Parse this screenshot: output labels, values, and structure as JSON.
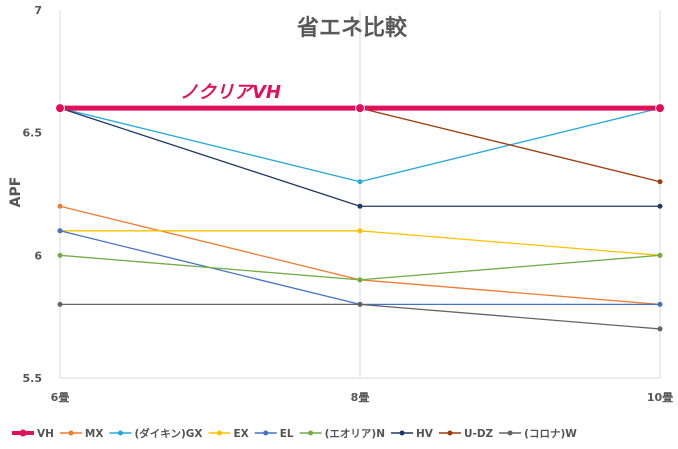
{
  "chart_data": {
    "type": "line",
    "title": "省エネ比較",
    "ylabel": "APF",
    "xlabel": "",
    "categories": [
      "6畳",
      "8畳",
      "10畳"
    ],
    "ylim": [
      5.5,
      7
    ],
    "yticks": [
      "5.5",
      "6",
      "6.5",
      "7"
    ],
    "grid": "vertical",
    "legend_position": "bottom",
    "annotation": "ノクリアVH",
    "series": [
      {
        "name": "VH",
        "values": [
          6.6,
          6.6,
          6.6
        ],
        "color": "#e0105a",
        "highlight": true
      },
      {
        "name": "MX",
        "values": [
          6.2,
          5.9,
          5.8
        ],
        "color": "#ed7d31"
      },
      {
        "name": "(ダイキン)GX",
        "values": [
          6.6,
          6.3,
          6.6
        ],
        "color": "#25a9d8"
      },
      {
        "name": "EX",
        "values": [
          6.1,
          6.1,
          6.0
        ],
        "color": "#ffc000"
      },
      {
        "name": "EL",
        "values": [
          6.1,
          5.8,
          5.8
        ],
        "color": "#4472c4"
      },
      {
        "name": "(エオリア)N",
        "values": [
          6.0,
          5.9,
          6.0
        ],
        "color": "#70ad47"
      },
      {
        "name": "HV",
        "values": [
          6.6,
          6.2,
          6.2
        ],
        "color": "#1f3864"
      },
      {
        "name": "U-DZ",
        "values": [
          6.6,
          6.6,
          6.3
        ],
        "color": "#9e3b0c"
      },
      {
        "name": "(コロナ)W",
        "values": [
          5.8,
          5.8,
          5.7
        ],
        "color": "#636363"
      }
    ]
  }
}
